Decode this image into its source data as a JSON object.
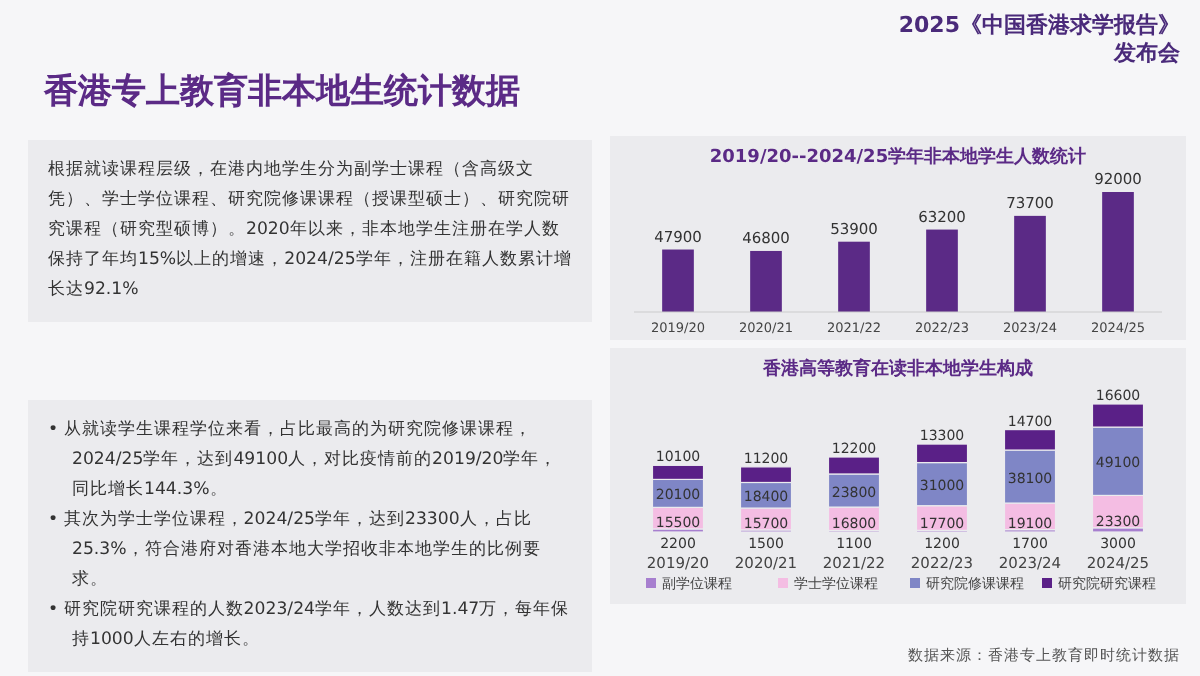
{
  "chart_data": [
    {
      "type": "other",
      "title": "香港专上教育非本地生统计数据",
      "subtitle": "2025《中国香港求学报告》发布会",
      "annotations": [
        "根据就读课程层级，在港内地学生分为副学士课程（含高级文凭）、学士学位课程、研究院修课课程（授课型硕士）、研究院研究课程（研究型硕博）。2020年以来，非本地学生注册在学人数保持了年均15%以上的增速，2024/25学年，注册在籍人数累计增长达92.1%",
        "• 从就读学生课程学位来看，占比最高的为研究院修课课程，2024/25学年，达到49100人，对比疫情前的2019/20学年，同比增长144.3%。",
        "• 其次为学士学位课程，2024/25学年，达到23300人，占比25.3%，符合港府对香港本地大学招收非本地学生的比例要求。",
        "• 研究院研究课程的人数2023/24学年，人数达到1.47万，每年保持1000人左右的增长。"
      ]
    },
    {
      "type": "bar",
      "title": "2019/20--2024/25学年非本地学生人数统计",
      "categories": [
        "2019/20",
        "2020/21",
        "2021/22",
        "2022/23",
        "2023/24",
        "2024/25"
      ],
      "values": [
        47900,
        46800,
        53900,
        63200,
        73700,
        92000
      ],
      "color": "#5b2a86",
      "data_labels": true
    },
    {
      "type": "bar",
      "title": "香港高等教育在读非本地学生构成",
      "stacked": true,
      "legend": "bottom",
      "data_labels": true,
      "categories": [
        "2019/20",
        "2020/21",
        "2021/22",
        "2022/23",
        "2023/24",
        "2024/25"
      ],
      "series": [
        {
          "name": "副学位课程",
          "color": "#a77fcf",
          "values": [
            2200,
            1500,
            1100,
            1200,
            1700,
            3000
          ]
        },
        {
          "name": "学士学位课程",
          "color": "#f4bde3",
          "values": [
            15500,
            15700,
            16800,
            17700,
            19100,
            23300
          ]
        },
        {
          "name": "研究院修课课程",
          "color": "#7f86c6",
          "values": [
            20100,
            18400,
            23800,
            31000,
            38100,
            49100
          ]
        },
        {
          "name": "研究院研究课程",
          "color": "#5a2087",
          "values": [
            10100,
            11200,
            12200,
            13300,
            14700,
            16600
          ]
        }
      ],
      "annotations": [
        "数据来源：香港专上教育即时统计数据"
      ]
    }
  ]
}
